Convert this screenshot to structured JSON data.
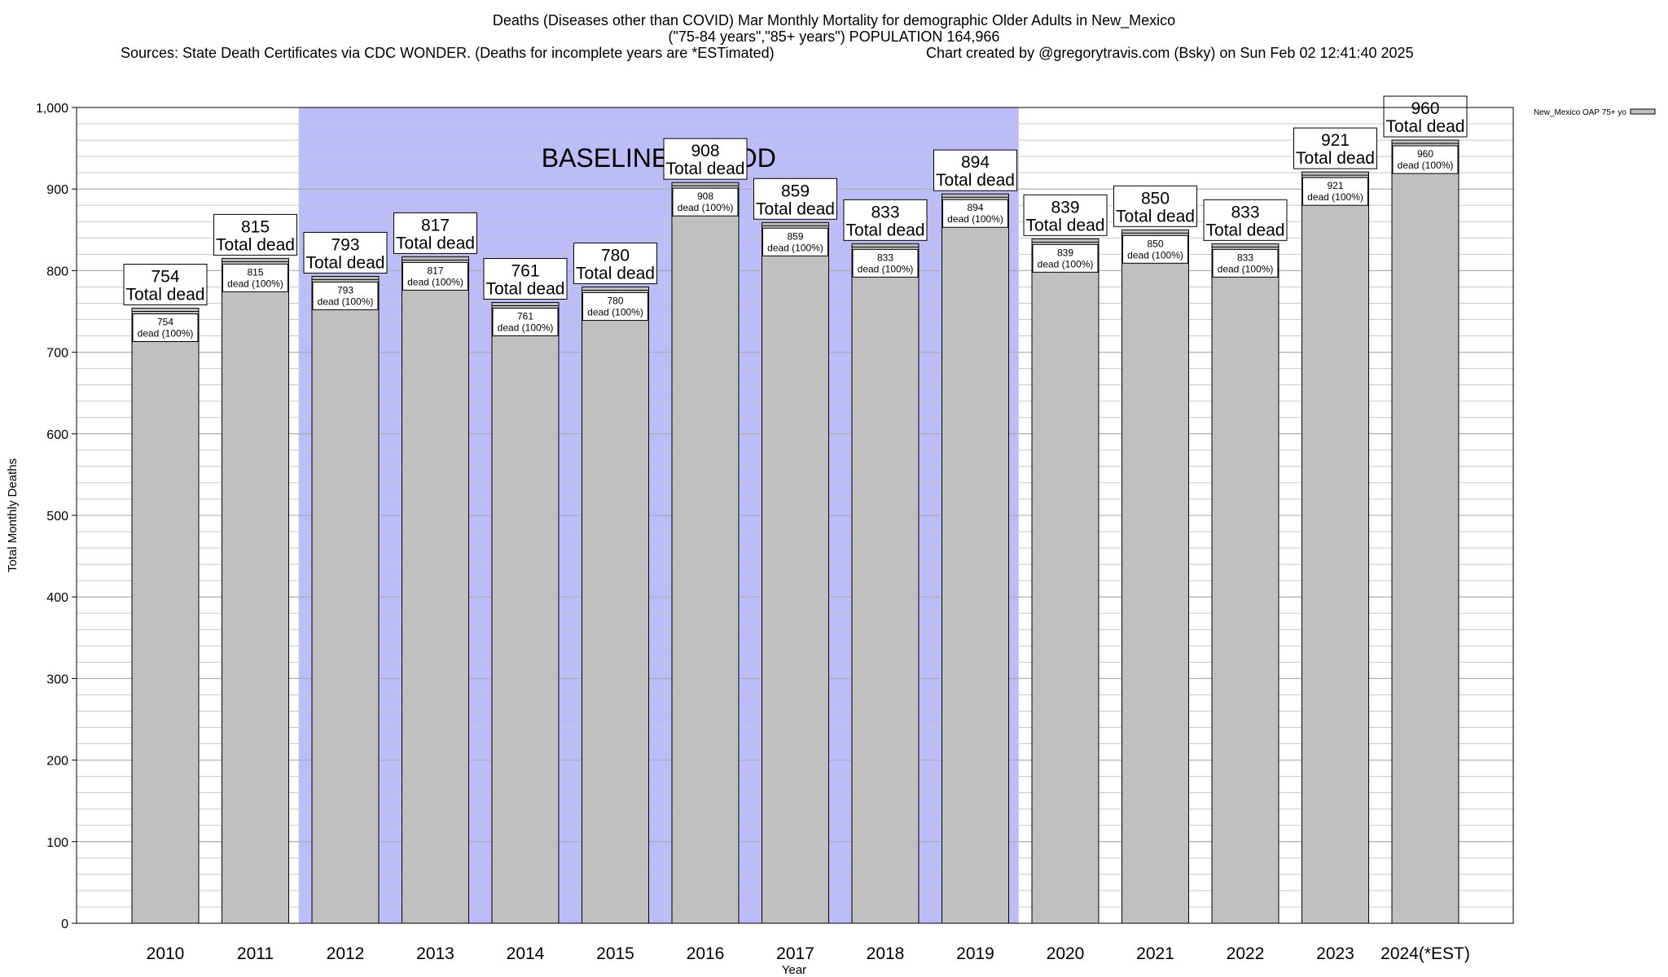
{
  "chart_data": {
    "type": "bar",
    "title": "Deaths (Diseases other than COVID) Mar Monthly Mortality for demographic Older Adults in New_Mexico",
    "subtitle": "(\"75-84 years\",\"85+ years\") POPULATION 164,966",
    "source_note": "Sources: State Death Certificates via CDC WONDER. (Deaths for incomplete years are *ESTimated)",
    "credit": "Chart created by @gregorytravis.com (Bsky) on Sun Feb 02 12:41:40 2025",
    "xlabel": "Year",
    "ylabel": "Total Monthly Deaths",
    "ylim": [
      0,
      1000
    ],
    "yticks": [
      0,
      100,
      200,
      300,
      400,
      500,
      600,
      700,
      800,
      900,
      1000
    ],
    "ytick_labels": [
      "0",
      "100",
      "200",
      "300",
      "400",
      "500",
      "600",
      "700",
      "800",
      "900",
      "1,000"
    ],
    "categories": [
      "2010",
      "2011",
      "2012",
      "2013",
      "2014",
      "2015",
      "2016",
      "2017",
      "2018",
      "2019",
      "2020",
      "2021",
      "2022",
      "2023",
      "2024(*EST)"
    ],
    "series": [
      {
        "name": "New_Mexico OAP 75+ yo",
        "values": [
          754,
          815,
          793,
          817,
          761,
          780,
          908,
          859,
          833,
          894,
          839,
          850,
          833,
          921,
          960
        ]
      }
    ],
    "bar_total_label": "Total dead",
    "bar_inner_label": "dead (100%)",
    "baseline_band": {
      "label": "BASELINE PERIOD",
      "from_category": "2012",
      "to_category": "2019",
      "color": "#bcbcf8"
    },
    "bar_color": "#c0c0c0",
    "grid": true,
    "legend_position": "top-right"
  }
}
